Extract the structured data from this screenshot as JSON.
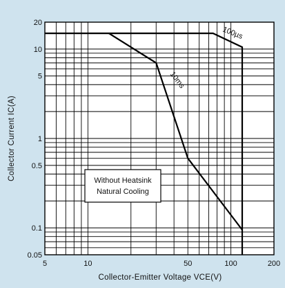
{
  "chart_data": {
    "type": "line",
    "title": "",
    "xlabel": "Collector-Emitter Voltage VCE(V)",
    "ylabel": "Collector Current IC(A)",
    "x_scale": "log",
    "y_scale": "log",
    "xlim": [
      5,
      200
    ],
    "ylim": [
      0.05,
      20
    ],
    "x_ticks": [
      5,
      10,
      50,
      100,
      200
    ],
    "x_tick_labels": [
      "5",
      "10",
      "50",
      "100",
      "200"
    ],
    "y_ticks": [
      0.05,
      0.1,
      0.5,
      1,
      5,
      10,
      20
    ],
    "y_tick_labels": [
      "0.05",
      "0.1",
      "0.5",
      "1",
      "5",
      "10",
      "20"
    ],
    "grid": true,
    "colors": {
      "background": "#cfe3ee",
      "plot": "#ffffff",
      "line": "#000000"
    },
    "series": [
      {
        "name": "100µs",
        "x": [
          5,
          75,
          120,
          120
        ],
        "y": [
          15,
          15,
          10.5,
          0.05
        ]
      },
      {
        "name": "10ms",
        "x": [
          14,
          30,
          50,
          120
        ],
        "y": [
          15,
          7,
          0.6,
          0.095
        ]
      }
    ],
    "annotations": [
      {
        "text": "100µs",
        "x": 100,
        "y": 12
      },
      {
        "text": "10ms",
        "x": 38,
        "y": 3
      },
      {
        "text": "Without Heatsink",
        "x": 18,
        "y": 0.25
      },
      {
        "text": "Natural Cooling",
        "x": 18,
        "y": 0.25
      }
    ]
  }
}
